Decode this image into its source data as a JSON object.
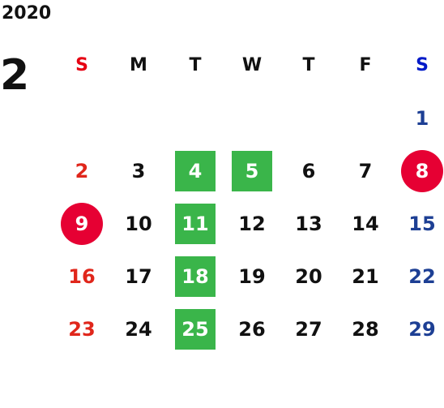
{
  "calendar": {
    "year": "2020",
    "month": "2",
    "weekdays": [
      "S",
      "M",
      "T",
      "W",
      "T",
      "F",
      "S"
    ],
    "weeks": [
      [
        {
          "label": "",
          "style": "empty"
        },
        {
          "label": "",
          "style": "empty"
        },
        {
          "label": "",
          "style": "empty"
        },
        {
          "label": "",
          "style": "empty"
        },
        {
          "label": "",
          "style": "empty"
        },
        {
          "label": "",
          "style": "empty"
        },
        {
          "label": "1",
          "style": "sat"
        }
      ],
      [
        {
          "label": "2",
          "style": "sun"
        },
        {
          "label": "3",
          "style": "normal"
        },
        {
          "label": "4",
          "style": "green"
        },
        {
          "label": "5",
          "style": "green"
        },
        {
          "label": "6",
          "style": "normal"
        },
        {
          "label": "7",
          "style": "normal"
        },
        {
          "label": "8",
          "style": "red"
        }
      ],
      [
        {
          "label": "9",
          "style": "red"
        },
        {
          "label": "10",
          "style": "normal"
        },
        {
          "label": "11",
          "style": "green"
        },
        {
          "label": "12",
          "style": "normal"
        },
        {
          "label": "13",
          "style": "normal"
        },
        {
          "label": "14",
          "style": "normal"
        },
        {
          "label": "15",
          "style": "sat"
        }
      ],
      [
        {
          "label": "16",
          "style": "sun"
        },
        {
          "label": "17",
          "style": "normal"
        },
        {
          "label": "18",
          "style": "green"
        },
        {
          "label": "19",
          "style": "normal"
        },
        {
          "label": "20",
          "style": "normal"
        },
        {
          "label": "21",
          "style": "normal"
        },
        {
          "label": "22",
          "style": "sat"
        }
      ],
      [
        {
          "label": "23",
          "style": "sun"
        },
        {
          "label": "24",
          "style": "normal"
        },
        {
          "label": "25",
          "style": "green"
        },
        {
          "label": "26",
          "style": "normal"
        },
        {
          "label": "27",
          "style": "normal"
        },
        {
          "label": "28",
          "style": "normal"
        },
        {
          "label": "29",
          "style": "sat"
        }
      ]
    ]
  },
  "colors": {
    "sunday": "#e0261b",
    "saturday": "#1d3f94",
    "highlight_green": "#3ab54a",
    "highlight_red": "#e60033"
  }
}
